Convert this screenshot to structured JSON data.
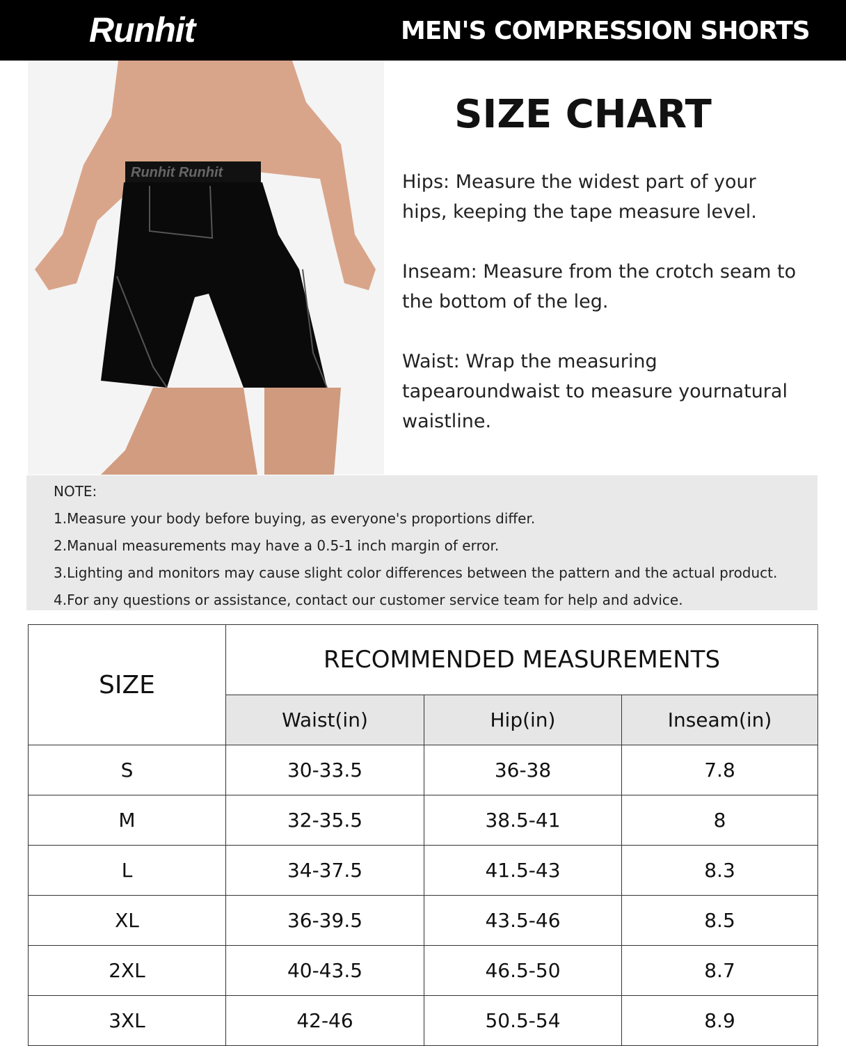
{
  "header": {
    "logo": "Runhit",
    "title": "MEN'S COMPRESSION SHORTS"
  },
  "product_image": {
    "waistband_logo": "Runhit",
    "shorts_color": "#000000",
    "stitch_color": "#555555"
  },
  "size_chart_title": "SIZE CHART",
  "instructions": [
    "Hips: Measure the widest part of your hips, keeping the tape measure level.",
    "Inseam: Measure from the crotch seam to the bottom of the leg.",
    "Waist: Wrap the measuring tapearoundwaist to measure yournatural waistline."
  ],
  "note": {
    "title": "NOTE:",
    "items": [
      "1.Measure your body before buying, as everyone's proportions differ.",
      "2.Manual measurements may have a 0.5-1 inch margin of error.",
      "3.Lighting and monitors may cause slight color differences between the pattern and the actual product.",
      "4.For any questions or assistance, contact our customer service team for help and advice."
    ]
  },
  "table": {
    "size_header": "SIZE",
    "group_header": "RECOMMENDED MEASUREMENTS",
    "columns": [
      "Waist(in)",
      "Hip(in)",
      "Inseam(in)"
    ],
    "rows": [
      [
        "S",
        "30-33.5",
        "36-38",
        "7.8"
      ],
      [
        "M",
        "32-35.5",
        "38.5-41",
        "8"
      ],
      [
        "L",
        "34-37.5",
        "41.5-43",
        "8.3"
      ],
      [
        "XL",
        "36-39.5",
        "43.5-46",
        "8.5"
      ],
      [
        "2XL",
        "40-43.5",
        "46.5-50",
        "8.7"
      ],
      [
        "3XL",
        "42-46",
        "50.5-54",
        "8.9"
      ]
    ]
  }
}
